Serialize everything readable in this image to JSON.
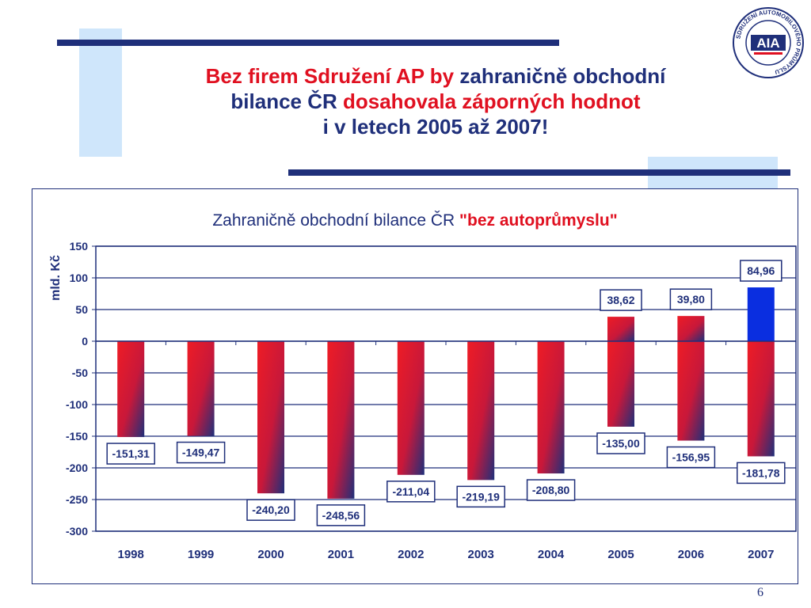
{
  "slide": {
    "title_part1": "Bez firem Sdružení AP by",
    "title_part2": " zahraničně obchodní",
    "title_part3": "bilance ČR ",
    "title_part4": "dosahovala záporných hodnot",
    "title_part5": "i v letech 2005 až 2007!",
    "page_number": "6",
    "logo_text": "AIA",
    "logo_ring_text": "SDRUŽENÍ AUTOMOBILOVÉHO PRŮMYSLU"
  },
  "colors": {
    "navy": "#1f2f7a",
    "red": "#e01020",
    "light_blue": "#cfe6fb",
    "bar_red": "#ee1c25",
    "bar_blue": "#1f2f7a",
    "pos_blue": "#0a2ee0"
  },
  "chart_data": {
    "type": "bar",
    "title_text": "Zahraničně obchodní bilance ČR ",
    "title_highlight": "\"bez autoprůmyslu\"",
    "ylabel": "mld. Kč",
    "categories": [
      "1998",
      "1999",
      "2000",
      "2001",
      "2002",
      "2003",
      "2004",
      "2005",
      "2006",
      "2007"
    ],
    "values": [
      -151.31,
      -149.47,
      -240.2,
      -248.56,
      -211.04,
      -219.19,
      -208.8,
      -135.0,
      -156.95,
      -181.78
    ],
    "labels": [
      "-151,31",
      "-149,47",
      "-240,20",
      "-248,56",
      "-211,04",
      "-219,19",
      "-208,80",
      "-135,00",
      "-156,95",
      "-181,78"
    ],
    "positive_values": [
      null,
      null,
      null,
      null,
      null,
      null,
      null,
      38.62,
      39.8,
      84.96
    ],
    "positive_labels": [
      "",
      "",
      "",
      "",
      "",
      "",
      "",
      "38,62",
      "39,80",
      "84,96"
    ],
    "ylim": [
      -300,
      150
    ],
    "yticks": [
      -300,
      -250,
      -200,
      -150,
      -100,
      -50,
      0,
      50,
      100,
      150
    ],
    "ytick_labels": [
      "-300",
      "-250",
      "-200",
      "-150",
      "-100",
      "-50",
      "0",
      "50",
      "100",
      "150"
    ],
    "grid": true
  }
}
